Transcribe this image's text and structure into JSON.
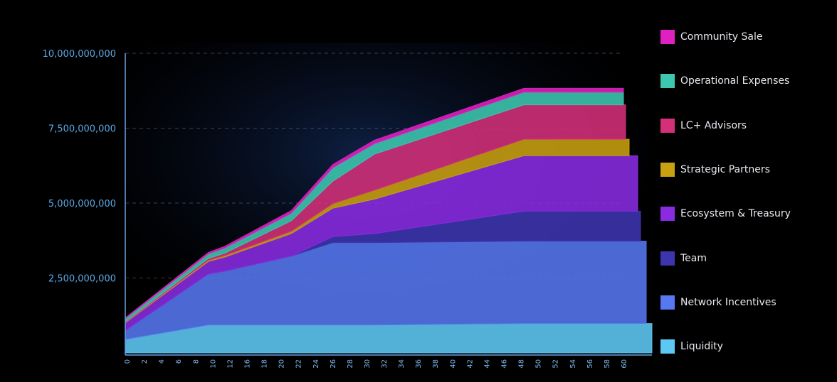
{
  "chart_data": {
    "type": "area",
    "stacked": true,
    "title": "",
    "xlabel": "",
    "ylabel": "",
    "ylim": [
      0,
      10000000000
    ],
    "yticks": [
      2500000000,
      5000000000,
      7500000000,
      10000000000
    ],
    "ytick_labels": [
      "2,500,000,000",
      "5,000,000,000",
      "7,500,000,000",
      "10,000,000,000"
    ],
    "x": [
      0,
      10,
      12,
      20,
      25,
      30,
      48,
      60
    ],
    "xtick_labels": [
      "0",
      "2",
      "4",
      "6",
      "8",
      "10",
      "12",
      "16",
      "18",
      "20",
      "22",
      "24",
      "26",
      "28",
      "30",
      "32",
      "34",
      "36",
      "38",
      "40",
      "42",
      "44",
      "46",
      "48",
      "50",
      "52",
      "54",
      "56",
      "58",
      "60"
    ],
    "grid": "horizontal-dashed",
    "legend_position": "right",
    "series": [
      {
        "name": "Liquidity",
        "color": "#5ec8f5",
        "values": [
          450000000,
          930000000,
          930000000,
          930000000,
          930000000,
          930000000,
          980000000,
          980000000
        ]
      },
      {
        "name": "Network Incentives",
        "color": "#5778f0",
        "values": [
          300000000,
          1700000000,
          1800000000,
          2300000000,
          2750000000,
          2750000000,
          2750000000,
          2750000000
        ]
      },
      {
        "name": "Team",
        "color": "#3d35b0",
        "values": [
          0,
          0,
          0,
          0,
          200000000,
          300000000,
          1000000000,
          1000000000
        ]
      },
      {
        "name": "Ecosystem & Treasury",
        "color": "#8a2be2",
        "values": [
          250000000,
          420000000,
          470000000,
          750000000,
          950000000,
          1150000000,
          1850000000,
          1850000000
        ]
      },
      {
        "name": "Strategic Partners",
        "color": "#c9a010",
        "values": [
          20000000,
          40000000,
          50000000,
          80000000,
          150000000,
          300000000,
          550000000,
          550000000
        ]
      },
      {
        "name": "LC+ Advisors",
        "color": "#d4307a",
        "values": [
          20000000,
          60000000,
          80000000,
          350000000,
          750000000,
          1200000000,
          1150000000,
          1150000000
        ]
      },
      {
        "name": "Operational Expenses",
        "color": "#3cc8b0",
        "values": [
          100000000,
          150000000,
          170000000,
          250000000,
          450000000,
          350000000,
          420000000,
          420000000
        ]
      },
      {
        "name": "Community Sale",
        "color": "#e020c0",
        "values": [
          30000000,
          50000000,
          60000000,
          90000000,
          110000000,
          120000000,
          130000000,
          130000000
        ]
      }
    ],
    "legend_order": [
      "Community Sale",
      "Operational Expenses",
      "LC+ Advisors",
      "Strategic Partners",
      "Ecosystem & Treasury",
      "Team",
      "Network Incentives",
      "Liquidity"
    ]
  }
}
